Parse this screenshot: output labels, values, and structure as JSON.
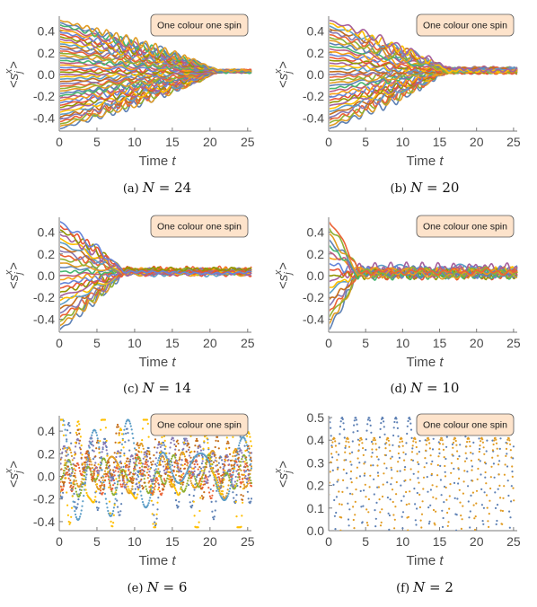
{
  "colors": {
    "series": [
      "#5e81b5",
      "#e19c24",
      "#8fb032",
      "#eb6235",
      "#8778b3",
      "#c56e1a",
      "#5d9ec7",
      "#ffbf00",
      "#a5609d",
      "#929600",
      "#e95536",
      "#6685d9",
      "#f89f13",
      "#bc5b80",
      "#47b66d"
    ],
    "legend_fill": "#fde3cb",
    "legend_border": "#5a5a5a",
    "axis": "#7a7a7a"
  },
  "chart_data": [
    {
      "type": "line",
      "N": 24,
      "caption": "(a) N = 24",
      "legend": "One colour one spin",
      "xlabel": "Time t",
      "ylabel": "<s_j^x>",
      "xlim": [
        0,
        25.5
      ],
      "ylim": [
        -0.52,
        0.52
      ],
      "xticks": [
        0,
        5,
        10,
        15,
        20,
        25
      ],
      "yticks": [
        -0.4,
        -0.2,
        0.0,
        0.2,
        0.4
      ],
      "ytick_labels": [
        "-0.4",
        "-0.2",
        "0.0",
        "0.2",
        "0.4"
      ],
      "initial_values": [
        -0.5,
        -0.478,
        -0.457,
        -0.435,
        -0.413,
        -0.391,
        -0.37,
        -0.348,
        -0.326,
        -0.304,
        -0.283,
        -0.261,
        -0.239,
        -0.217,
        -0.196,
        -0.174,
        -0.152,
        -0.13,
        -0.109,
        -0.087,
        -0.065,
        -0.043,
        -0.022,
        0.0,
        0.022,
        0.043,
        0.065,
        0.087,
        0.109,
        0.13,
        0.152,
        0.174,
        0.196,
        0.217,
        0.239,
        0.261,
        0.283,
        0.304,
        0.326,
        0.348,
        0.37,
        0.391,
        0.413,
        0.435,
        0.457,
        0.478,
        0.5
      ],
      "converge_value": 0.03,
      "converge_time": 21,
      "final_spread": 0.015,
      "oscillation_amplitude": 0.012,
      "marker": "line"
    },
    {
      "type": "line",
      "N": 20,
      "caption": "(b) N = 20",
      "legend": "One colour one spin",
      "xlabel": "Time t",
      "ylabel": "<s_j^x>",
      "xlim": [
        0,
        25.5
      ],
      "ylim": [
        -0.52,
        0.52
      ],
      "xticks": [
        0,
        5,
        10,
        15,
        20,
        25
      ],
      "yticks": [
        -0.4,
        -0.2,
        0.0,
        0.2,
        0.4
      ],
      "ytick_labels": [
        "-0.4",
        "-0.2",
        "0.0",
        "0.2",
        "0.4"
      ],
      "initial_values": [
        -0.5,
        -0.474,
        -0.447,
        -0.421,
        -0.395,
        -0.368,
        -0.342,
        -0.316,
        -0.289,
        -0.263,
        -0.237,
        -0.211,
        -0.184,
        -0.158,
        -0.132,
        -0.105,
        -0.079,
        -0.053,
        -0.026,
        0.0,
        0.026,
        0.053,
        0.079,
        0.105,
        0.132,
        0.158,
        0.184,
        0.211,
        0.237,
        0.263,
        0.289,
        0.316,
        0.342,
        0.368,
        0.395,
        0.421,
        0.447,
        0.474,
        0.5
      ],
      "converge_value": 0.04,
      "converge_time": 16,
      "final_spread": 0.03,
      "oscillation_amplitude": 0.02,
      "marker": "line"
    },
    {
      "type": "line",
      "N": 14,
      "caption": "(c) N = 14",
      "legend": "One colour one spin",
      "xlabel": "Time t",
      "ylabel": "<s_j^x>",
      "xlim": [
        0,
        25.5
      ],
      "ylim": [
        -0.52,
        0.52
      ],
      "xticks": [
        0,
        5,
        10,
        15,
        20,
        25
      ],
      "yticks": [
        -0.4,
        -0.2,
        0.0,
        0.2,
        0.4
      ],
      "ytick_labels": [
        "-0.4",
        "-0.2",
        "0.0",
        "0.2",
        "0.4"
      ],
      "initial_values": [
        -0.5,
        -0.462,
        -0.423,
        -0.385,
        -0.346,
        -0.308,
        -0.269,
        -0.231,
        -0.192,
        -0.154,
        -0.115,
        -0.077,
        -0.038,
        0.0,
        0.038,
        0.077,
        0.115,
        0.154,
        0.192,
        0.231,
        0.269,
        0.308,
        0.346,
        0.385,
        0.423,
        0.462,
        0.5
      ],
      "converge_value": 0.04,
      "converge_time": 8.5,
      "final_spread": 0.04,
      "oscillation_amplitude": 0.025,
      "marker": "line"
    },
    {
      "type": "line",
      "N": 10,
      "caption": "(d) N = 10",
      "legend": "One colour one spin",
      "xlabel": "Time t",
      "ylabel": "<s_j^x>",
      "xlim": [
        0,
        25.5
      ],
      "ylim": [
        -0.52,
        0.52
      ],
      "xticks": [
        0,
        5,
        10,
        15,
        20,
        25
      ],
      "yticks": [
        -0.4,
        -0.2,
        0.0,
        0.2,
        0.4
      ],
      "ytick_labels": [
        "-0.4",
        "-0.2",
        "0.0",
        "0.2",
        "0.4"
      ],
      "initial_values": [
        -0.5,
        -0.444,
        -0.389,
        -0.333,
        -0.278,
        -0.222,
        -0.167,
        -0.111,
        -0.056,
        0.0,
        0.056,
        0.111,
        0.167,
        0.222,
        0.278,
        0.333,
        0.389,
        0.444,
        0.5
      ],
      "converge_value": 0.04,
      "converge_time": 4,
      "final_spread": 0.07,
      "oscillation_amplitude": 0.045,
      "marker": "line"
    },
    {
      "type": "line",
      "N": 6,
      "caption": "(e) N = 6",
      "legend": "One colour one spin",
      "xlabel": "Time t",
      "ylabel": "<s_j^x>",
      "xlim": [
        0,
        25.5
      ],
      "ylim": [
        -0.48,
        0.52
      ],
      "xticks": [
        0,
        5,
        10,
        15,
        20,
        25
      ],
      "yticks": [
        -0.4,
        -0.2,
        0.0,
        0.2,
        0.4
      ],
      "ytick_labels": [
        "-0.4",
        "-0.2",
        "0.0",
        "0.2",
        "0.4"
      ],
      "initial_values": [
        -0.26,
        -0.05,
        0.0,
        0.06,
        0.12,
        0.25,
        0.38,
        0.5
      ],
      "converge_value": 0.08,
      "converge_time": 0,
      "final_spread": 0.16,
      "oscillation_amplitude": 0.14,
      "marker": "dots"
    },
    {
      "type": "scatter",
      "N": 2,
      "caption": "(f) N = 2",
      "legend": "One colour one spin",
      "xlabel": "Time t",
      "ylabel": "<s_j^x>",
      "xlim": [
        0,
        25.5
      ],
      "ylim": [
        0,
        0.5
      ],
      "xticks": [
        0,
        5,
        10,
        15,
        20,
        25
      ],
      "yticks": [
        0.0,
        0.1,
        0.2,
        0.3,
        0.4,
        0.5
      ],
      "ytick_labels": [
        "0.0",
        "0.1",
        "0.2",
        "0.3",
        "0.4",
        "0.5"
      ],
      "series": [
        {
          "base_values": [
            0.0,
            0.1,
            0.2,
            0.3,
            0.4,
            0.5
          ],
          "pattern": "sampled |cos| pairs"
        }
      ],
      "marker": "dots"
    }
  ]
}
